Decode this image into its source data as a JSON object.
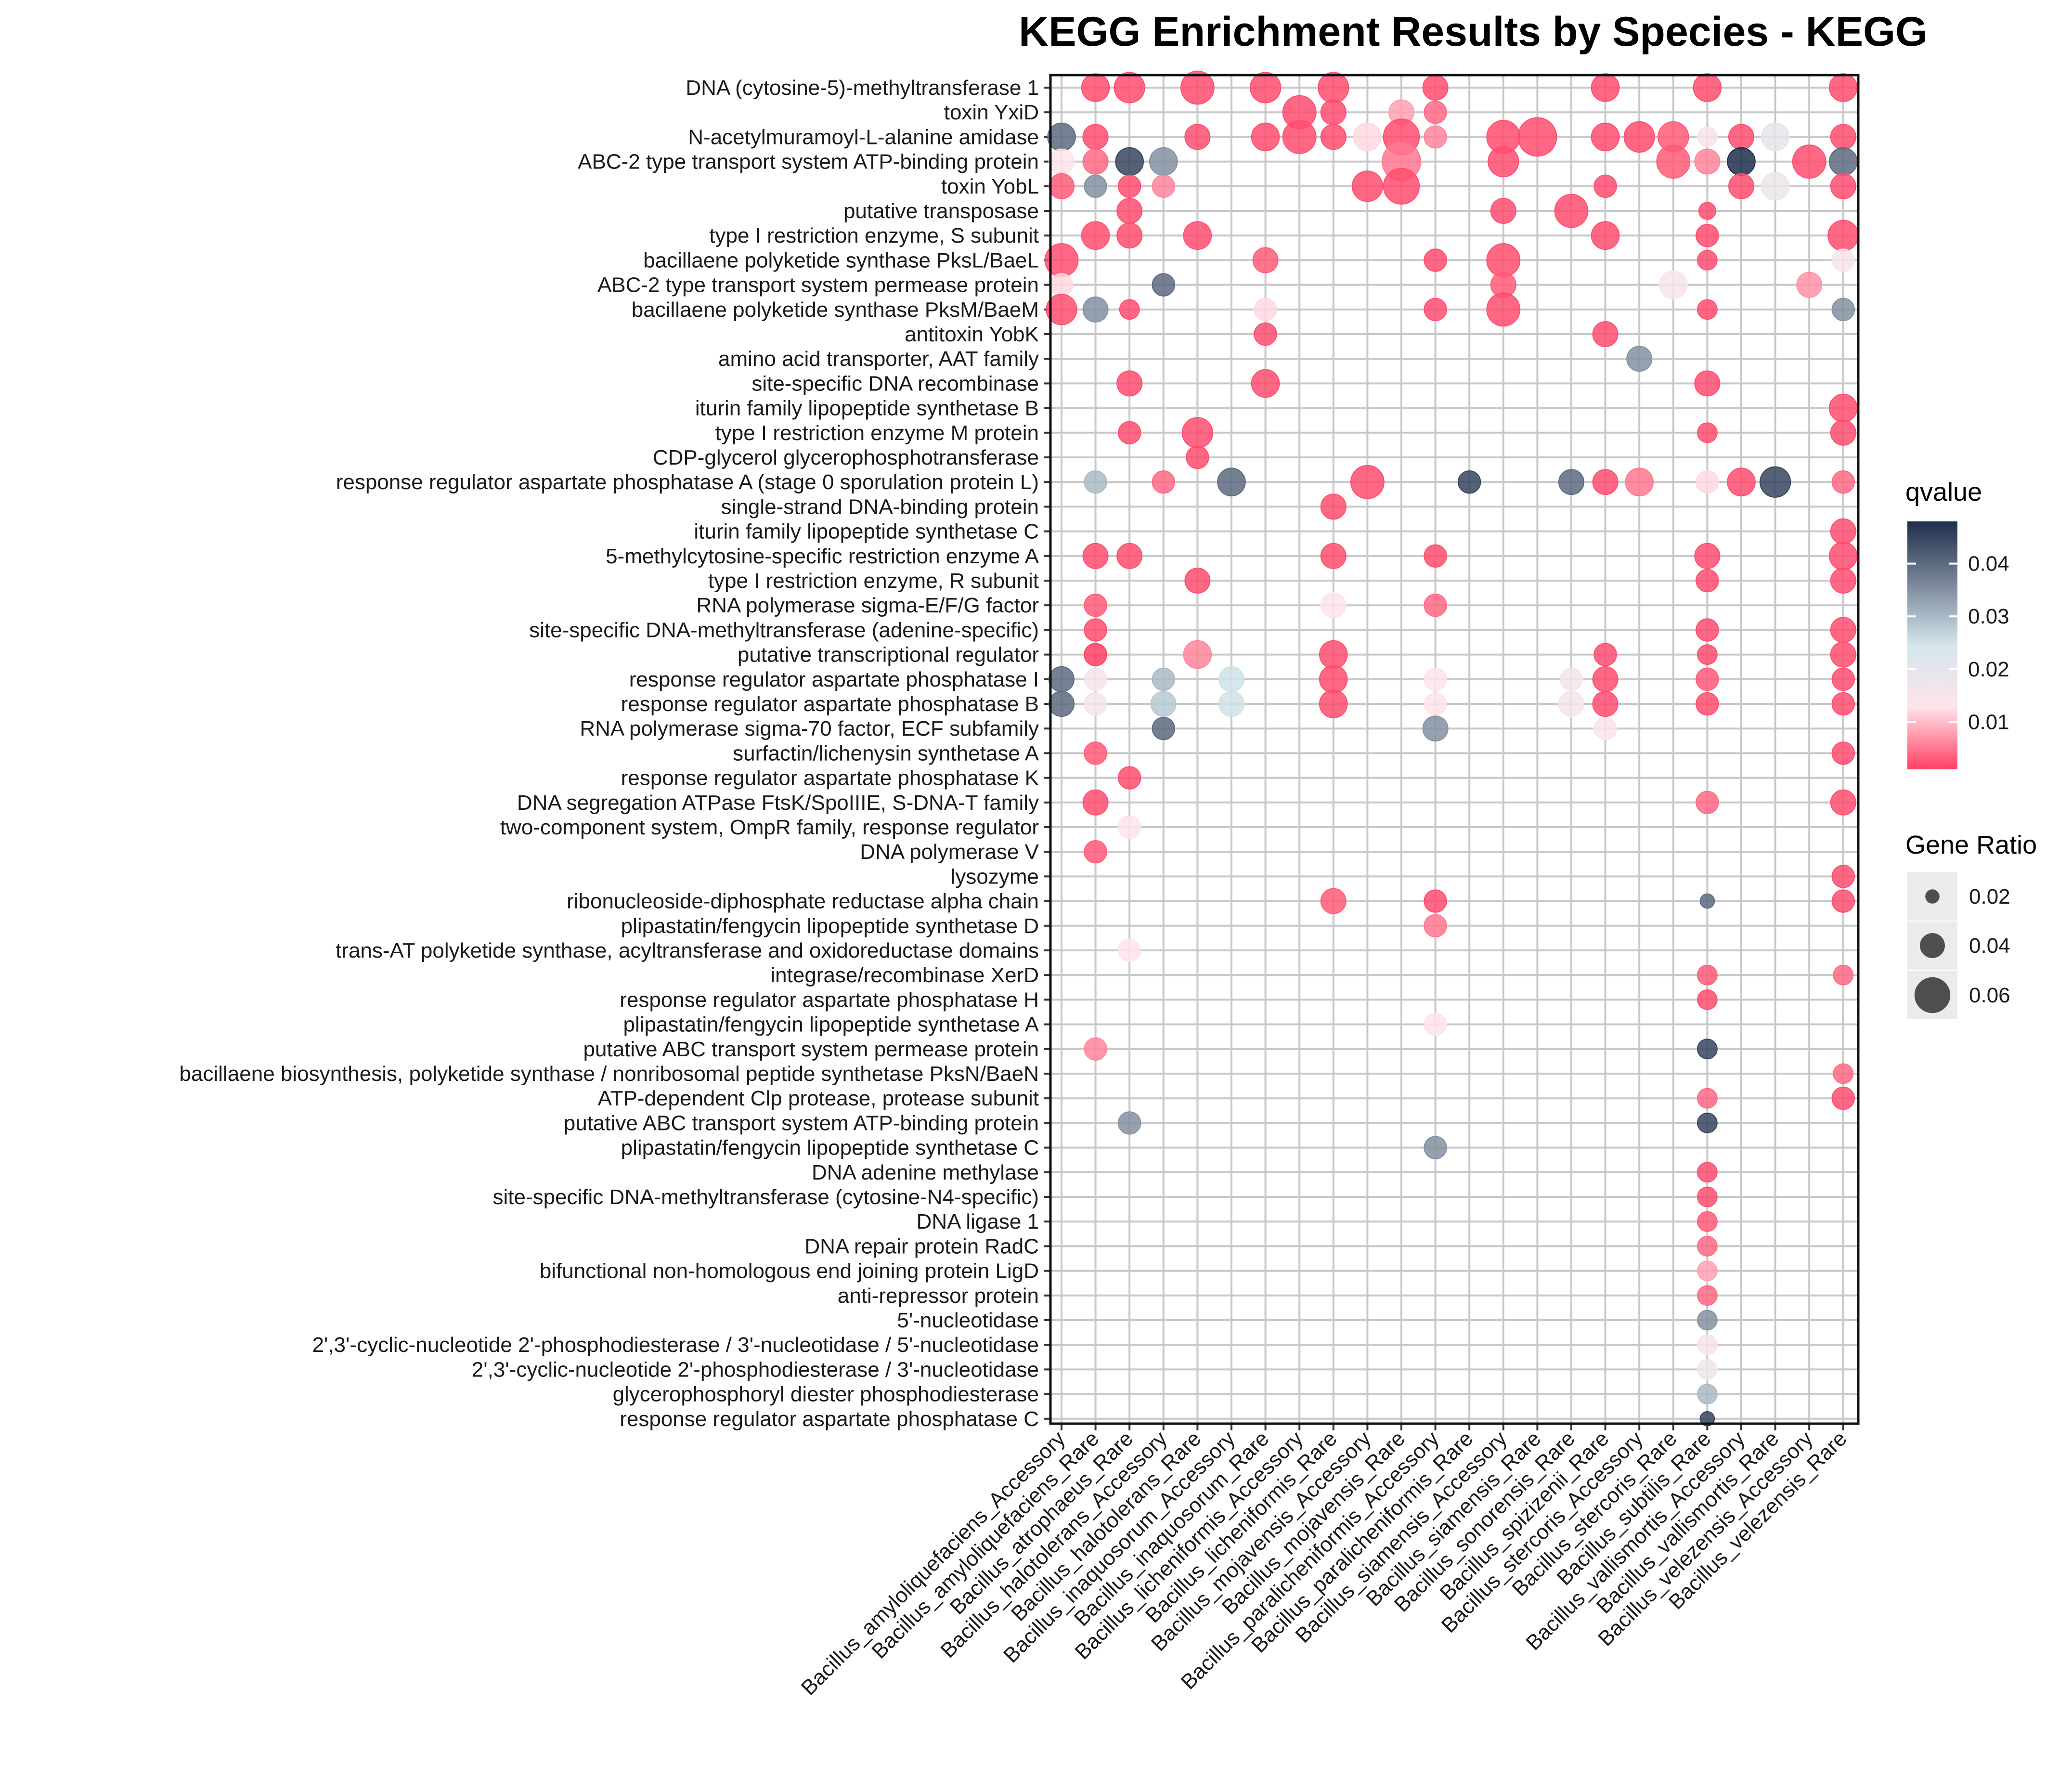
{
  "chart_data": {
    "type": "bubble-matrix",
    "title": "KEGG Enrichment Results by Species - KEGG",
    "xlabel": "",
    "ylabel": "",
    "categories_x": [
      "Bacillus_amyloliquefaciens_Accessory",
      "Bacillus_amyloliquefaciens_Rare",
      "Bacillus_atrophaeus_Rare",
      "Bacillus_halotolerans_Accessory",
      "Bacillus_halotolerans_Rare",
      "Bacillus_inaquosorum_Accessory",
      "Bacillus_inaquosorum_Rare",
      "Bacillus_licheniformis_Accessory",
      "Bacillus_licheniformis_Rare",
      "Bacillus_mojavensis_Accessory",
      "Bacillus_mojavensis_Rare",
      "Bacillus_paralicheniformis_Accessory",
      "Bacillus_paralicheniformis_Rare",
      "Bacillus_siamensis_Accessory",
      "Bacillus_siamensis_Rare",
      "Bacillus_sonorensis_Rare",
      "Bacillus_spizizenii_Rare",
      "Bacillus_stercoris_Accessory",
      "Bacillus_stercoris_Rare",
      "Bacillus_subtilis_Rare",
      "Bacillus_vallismortis_Accessory",
      "Bacillus_vallismortis_Rare",
      "Bacillus_velezensis_Accessory",
      "Bacillus_velezensis_Rare"
    ],
    "categories_y": [
      "DNA (cytosine-5)-methyltransferase 1",
      "toxin YxiD",
      "N-acetylmuramoyl-L-alanine amidase",
      "ABC-2 type transport system ATP-binding protein",
      "toxin YobL",
      "putative transposase",
      "type I restriction enzyme, S subunit",
      "bacillaene polyketide synthase PksL/BaeL",
      "ABC-2 type transport system permease protein",
      "bacillaene polyketide synthase PksM/BaeM",
      "antitoxin YobK",
      "amino acid transporter, AAT family",
      "site-specific DNA recombinase",
      "iturin family lipopeptide synthetase B",
      "type I restriction enzyme M protein",
      "CDP-glycerol glycerophosphotransferase",
      "response regulator aspartate phosphatase A (stage 0 sporulation protein L)",
      "single-strand DNA-binding protein",
      "iturin family lipopeptide synthetase C",
      "5-methylcytosine-specific restriction enzyme A",
      "type I restriction enzyme, R subunit",
      "RNA polymerase sigma-E/F/G factor",
      "site-specific DNA-methyltransferase (adenine-specific)",
      "putative transcriptional regulator",
      "response regulator aspartate phosphatase I",
      "response regulator aspartate phosphatase B",
      "RNA polymerase sigma-70 factor, ECF subfamily",
      "surfactin/lichenysin synthetase A",
      "response regulator aspartate phosphatase K",
      "DNA segregation ATPase FtsK/SpoIIIE, S-DNA-T family",
      "two-component system, OmpR family, response regulator",
      "DNA polymerase V",
      "lysozyme",
      "ribonucleoside-diphosphate reductase alpha chain",
      "plipastatin/fengycin lipopeptide synthetase D",
      "trans-AT polyketide synthase, acyltransferase and oxidoreductase domains",
      "integrase/recombinase XerD",
      "response regulator aspartate phosphatase H",
      "plipastatin/fengycin lipopeptide synthetase A",
      "putative ABC transport system permease protein",
      "bacillaene biosynthesis, polyketide synthase / nonribosomal peptide synthetase PksN/BaeN",
      "ATP-dependent Clp protease, protease subunit",
      "putative ABC transport system ATP-binding protein",
      "plipastatin/fengycin lipopeptide synthetase C",
      "DNA adenine methylase",
      "site-specific DNA-methyltransferase (cytosine-N4-specific)",
      "DNA ligase 1",
      "DNA repair protein RadC",
      "bifunctional non-homologous end joining protein LigD",
      "anti-repressor protein",
      "5'-nucleotidase",
      "2',3'-cyclic-nucleotide 2'-phosphodiesterase / 3'-nucleotidase / 5'-nucleotidase",
      "2',3'-cyclic-nucleotide 2'-phosphodiesterase / 3'-nucleotidase",
      "glycerophosphoryl diester phosphodiesterase",
      "response regulator aspartate phosphatase C"
    ],
    "points_columns": [
      "x_index",
      "y_index",
      "gene_ratio",
      "qvalue"
    ],
    "points": [
      [
        1,
        0,
        0.045,
        0.002
      ],
      [
        2,
        0,
        0.05,
        0.002
      ],
      [
        4,
        0,
        0.055,
        0.002
      ],
      [
        6,
        0,
        0.05,
        0.002
      ],
      [
        8,
        0,
        0.05,
        0.002
      ],
      [
        11,
        0,
        0.04,
        0.002
      ],
      [
        16,
        0,
        0.045,
        0.002
      ],
      [
        19,
        0,
        0.045,
        0.002
      ],
      [
        23,
        0,
        0.045,
        0.002
      ],
      [
        7,
        1,
        0.055,
        0.002
      ],
      [
        8,
        1,
        0.04,
        0.002
      ],
      [
        10,
        1,
        0.04,
        0.008
      ],
      [
        11,
        1,
        0.035,
        0.004
      ],
      [
        0,
        2,
        0.045,
        0.04
      ],
      [
        1,
        2,
        0.04,
        0.002
      ],
      [
        4,
        2,
        0.04,
        0.002
      ],
      [
        6,
        2,
        0.045,
        0.002
      ],
      [
        7,
        2,
        0.055,
        0.002
      ],
      [
        8,
        2,
        0.04,
        0.002
      ],
      [
        9,
        2,
        0.045,
        0.012
      ],
      [
        10,
        2,
        0.06,
        0.002
      ],
      [
        11,
        2,
        0.035,
        0.006
      ],
      [
        13,
        2,
        0.055,
        0.002
      ],
      [
        14,
        2,
        0.065,
        0.002
      ],
      [
        16,
        2,
        0.045,
        0.002
      ],
      [
        17,
        2,
        0.05,
        0.002
      ],
      [
        18,
        2,
        0.05,
        0.003
      ],
      [
        19,
        2,
        0.03,
        0.015
      ],
      [
        20,
        2,
        0.04,
        0.002
      ],
      [
        21,
        2,
        0.045,
        0.02
      ],
      [
        23,
        2,
        0.04,
        0.002
      ],
      [
        0,
        3,
        0.04,
        0.013
      ],
      [
        1,
        3,
        0.04,
        0.004
      ],
      [
        2,
        3,
        0.045,
        0.045
      ],
      [
        3,
        3,
        0.045,
        0.035
      ],
      [
        10,
        3,
        0.065,
        0.005
      ],
      [
        13,
        3,
        0.05,
        0.002
      ],
      [
        18,
        3,
        0.055,
        0.003
      ],
      [
        19,
        3,
        0.04,
        0.006
      ],
      [
        20,
        3,
        0.045,
        0.048
      ],
      [
        22,
        3,
        0.055,
        0.002
      ],
      [
        23,
        3,
        0.045,
        0.04
      ],
      [
        0,
        4,
        0.04,
        0.003
      ],
      [
        1,
        4,
        0.035,
        0.035
      ],
      [
        2,
        4,
        0.035,
        0.002
      ],
      [
        3,
        4,
        0.035,
        0.006
      ],
      [
        9,
        4,
        0.05,
        0.002
      ],
      [
        10,
        4,
        0.06,
        0.002
      ],
      [
        16,
        4,
        0.035,
        0.002
      ],
      [
        20,
        4,
        0.04,
        0.002
      ],
      [
        21,
        4,
        0.045,
        0.018
      ],
      [
        23,
        4,
        0.04,
        0.002
      ],
      [
        2,
        5,
        0.04,
        0.002
      ],
      [
        13,
        5,
        0.04,
        0.002
      ],
      [
        15,
        5,
        0.055,
        0.002
      ],
      [
        19,
        5,
        0.025,
        0.002
      ],
      [
        1,
        6,
        0.045,
        0.002
      ],
      [
        2,
        6,
        0.04,
        0.002
      ],
      [
        4,
        6,
        0.045,
        0.002
      ],
      [
        16,
        6,
        0.045,
        0.002
      ],
      [
        19,
        6,
        0.035,
        0.002
      ],
      [
        23,
        6,
        0.05,
        0.002
      ],
      [
        0,
        7,
        0.055,
        0.002
      ],
      [
        6,
        7,
        0.04,
        0.003
      ],
      [
        11,
        7,
        0.035,
        0.002
      ],
      [
        13,
        7,
        0.055,
        0.002
      ],
      [
        19,
        7,
        0.03,
        0.002
      ],
      [
        23,
        7,
        0.035,
        0.015
      ],
      [
        0,
        8,
        0.035,
        0.012
      ],
      [
        3,
        8,
        0.035,
        0.04
      ],
      [
        13,
        8,
        0.04,
        0.003
      ],
      [
        18,
        8,
        0.045,
        0.015
      ],
      [
        22,
        8,
        0.04,
        0.007
      ],
      [
        0,
        9,
        0.05,
        0.002
      ],
      [
        1,
        9,
        0.04,
        0.035
      ],
      [
        2,
        9,
        0.03,
        0.002
      ],
      [
        6,
        9,
        0.035,
        0.012
      ],
      [
        11,
        9,
        0.035,
        0.002
      ],
      [
        13,
        9,
        0.055,
        0.002
      ],
      [
        19,
        9,
        0.03,
        0.002
      ],
      [
        23,
        9,
        0.035,
        0.035
      ],
      [
        6,
        10,
        0.035,
        0.002
      ],
      [
        16,
        10,
        0.04,
        0.002
      ],
      [
        17,
        11,
        0.04,
        0.035
      ],
      [
        2,
        12,
        0.04,
        0.002
      ],
      [
        6,
        12,
        0.045,
        0.002
      ],
      [
        19,
        12,
        0.04,
        0.002
      ],
      [
        23,
        13,
        0.045,
        0.002
      ],
      [
        2,
        14,
        0.035,
        0.002
      ],
      [
        4,
        14,
        0.05,
        0.002
      ],
      [
        19,
        14,
        0.03,
        0.002
      ],
      [
        23,
        14,
        0.04,
        0.002
      ],
      [
        4,
        15,
        0.035,
        0.002
      ],
      [
        1,
        16,
        0.035,
        0.03
      ],
      [
        3,
        16,
        0.035,
        0.004
      ],
      [
        5,
        16,
        0.045,
        0.04
      ],
      [
        9,
        16,
        0.055,
        0.002
      ],
      [
        12,
        16,
        0.035,
        0.045
      ],
      [
        15,
        16,
        0.04,
        0.04
      ],
      [
        16,
        16,
        0.04,
        0.002
      ],
      [
        17,
        16,
        0.045,
        0.005
      ],
      [
        19,
        16,
        0.035,
        0.012
      ],
      [
        20,
        16,
        0.045,
        0.002
      ],
      [
        21,
        16,
        0.05,
        0.045
      ],
      [
        23,
        16,
        0.035,
        0.004
      ],
      [
        8,
        17,
        0.04,
        0.002
      ],
      [
        23,
        18,
        0.04,
        0.002
      ],
      [
        1,
        19,
        0.04,
        0.002
      ],
      [
        2,
        19,
        0.04,
        0.002
      ],
      [
        8,
        19,
        0.04,
        0.002
      ],
      [
        11,
        19,
        0.035,
        0.002
      ],
      [
        19,
        19,
        0.04,
        0.002
      ],
      [
        23,
        19,
        0.045,
        0.002
      ],
      [
        4,
        20,
        0.04,
        0.002
      ],
      [
        19,
        20,
        0.035,
        0.002
      ],
      [
        23,
        20,
        0.04,
        0.002
      ],
      [
        1,
        21,
        0.035,
        0.003
      ],
      [
        8,
        21,
        0.04,
        0.013
      ],
      [
        11,
        21,
        0.035,
        0.004
      ],
      [
        1,
        22,
        0.035,
        0.002
      ],
      [
        19,
        22,
        0.035,
        0.002
      ],
      [
        23,
        22,
        0.04,
        0.002
      ],
      [
        1,
        23,
        0.035,
        0.001
      ],
      [
        4,
        23,
        0.045,
        0.006
      ],
      [
        8,
        23,
        0.045,
        0.002
      ],
      [
        16,
        23,
        0.035,
        0.002
      ],
      [
        19,
        23,
        0.03,
        0.002
      ],
      [
        23,
        23,
        0.04,
        0.002
      ],
      [
        0,
        24,
        0.04,
        0.04
      ],
      [
        1,
        24,
        0.035,
        0.015
      ],
      [
        3,
        24,
        0.035,
        0.03
      ],
      [
        5,
        24,
        0.04,
        0.025
      ],
      [
        8,
        24,
        0.045,
        0.002
      ],
      [
        11,
        24,
        0.035,
        0.013
      ],
      [
        15,
        24,
        0.035,
        0.016
      ],
      [
        16,
        24,
        0.04,
        0.002
      ],
      [
        19,
        24,
        0.035,
        0.003
      ],
      [
        23,
        24,
        0.035,
        0.002
      ],
      [
        0,
        25,
        0.04,
        0.04
      ],
      [
        1,
        25,
        0.035,
        0.016
      ],
      [
        3,
        25,
        0.04,
        0.028
      ],
      [
        5,
        25,
        0.04,
        0.025
      ],
      [
        8,
        25,
        0.045,
        0.002
      ],
      [
        11,
        25,
        0.035,
        0.013
      ],
      [
        15,
        25,
        0.04,
        0.016
      ],
      [
        16,
        25,
        0.04,
        0.002
      ],
      [
        19,
        25,
        0.035,
        0.002
      ],
      [
        23,
        25,
        0.035,
        0.002
      ],
      [
        3,
        26,
        0.035,
        0.04
      ],
      [
        11,
        26,
        0.04,
        0.035
      ],
      [
        16,
        26,
        0.035,
        0.014
      ],
      [
        1,
        27,
        0.035,
        0.003
      ],
      [
        23,
        27,
        0.035,
        0.002
      ],
      [
        2,
        28,
        0.035,
        0.002
      ],
      [
        1,
        29,
        0.04,
        0.002
      ],
      [
        19,
        29,
        0.035,
        0.004
      ],
      [
        23,
        29,
        0.04,
        0.002
      ],
      [
        2,
        30,
        0.035,
        0.013
      ],
      [
        1,
        31,
        0.035,
        0.003
      ],
      [
        23,
        32,
        0.035,
        0.002
      ],
      [
        8,
        33,
        0.04,
        0.003
      ],
      [
        11,
        33,
        0.035,
        0.002
      ],
      [
        19,
        33,
        0.02,
        0.04
      ],
      [
        23,
        33,
        0.035,
        0.002
      ],
      [
        11,
        34,
        0.035,
        0.005
      ],
      [
        2,
        35,
        0.035,
        0.013
      ],
      [
        19,
        36,
        0.03,
        0.003
      ],
      [
        23,
        36,
        0.03,
        0.004
      ],
      [
        19,
        37,
        0.03,
        0.002
      ],
      [
        11,
        38,
        0.035,
        0.013
      ],
      [
        1,
        39,
        0.035,
        0.006
      ],
      [
        19,
        39,
        0.03,
        0.045
      ],
      [
        23,
        40,
        0.03,
        0.004
      ],
      [
        19,
        41,
        0.03,
        0.004
      ],
      [
        23,
        41,
        0.035,
        0.002
      ],
      [
        2,
        42,
        0.035,
        0.035
      ],
      [
        19,
        42,
        0.03,
        0.045
      ],
      [
        11,
        43,
        0.035,
        0.035
      ],
      [
        19,
        44,
        0.03,
        0.002
      ],
      [
        19,
        45,
        0.03,
        0.002
      ],
      [
        19,
        46,
        0.03,
        0.003
      ],
      [
        19,
        47,
        0.03,
        0.004
      ],
      [
        19,
        48,
        0.03,
        0.008
      ],
      [
        19,
        49,
        0.03,
        0.004
      ],
      [
        19,
        50,
        0.03,
        0.035
      ],
      [
        19,
        51,
        0.03,
        0.015
      ],
      [
        19,
        52,
        0.03,
        0.017
      ],
      [
        19,
        53,
        0.03,
        0.03
      ],
      [
        19,
        54,
        0.02,
        0.045
      ]
    ],
    "qvalue_range": [
      0.001,
      0.048
    ],
    "qvalue_colors": [
      "#ff3f62",
      "#ffe4ea",
      "#d4e6ec",
      "#7a8799",
      "#1f2e4b"
    ],
    "gene_ratio_range": [
      0.015,
      0.065
    ],
    "legend": {
      "color_title": "qvalue",
      "color_ticks": [
        "0.01",
        "0.02",
        "0.03",
        "0.04"
      ],
      "color_tick_values": [
        0.01,
        0.02,
        0.03,
        0.04
      ],
      "size_title": "Gene Ratio",
      "size_ticks": [
        "0.02",
        "0.04",
        "0.06"
      ],
      "size_tick_values": [
        0.02,
        0.04,
        0.06
      ],
      "placement": "right"
    },
    "grid": true
  }
}
